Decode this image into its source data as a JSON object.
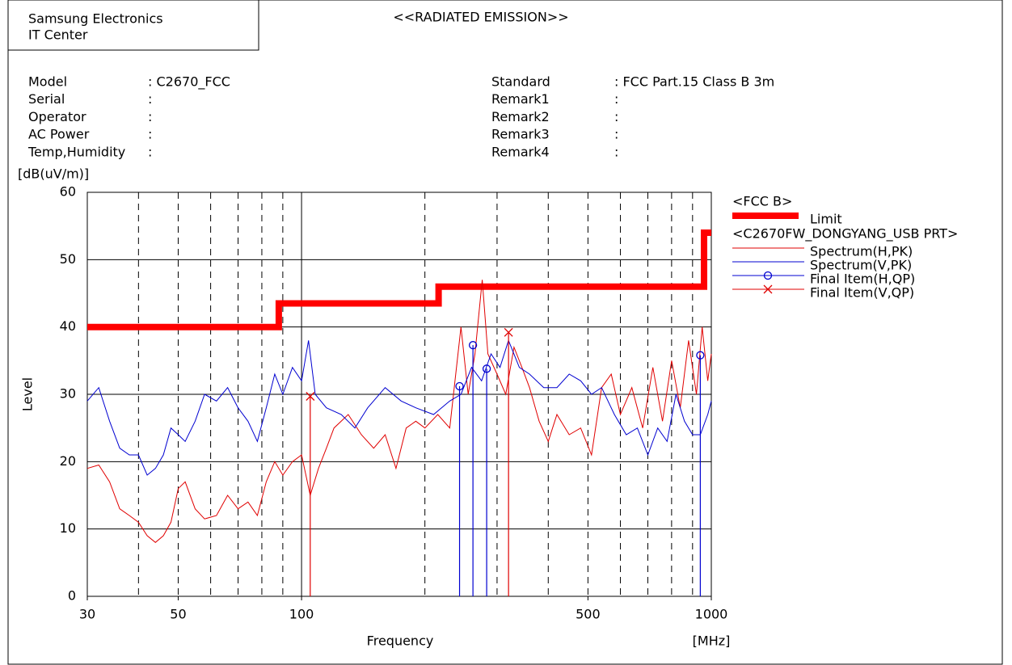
{
  "header": {
    "company": [
      "Samsung Electronics",
      "IT Center"
    ],
    "title": "<<RADIATED EMISSION>>",
    "fields_left": [
      {
        "label": "Model",
        "value": ": C2670_FCC"
      },
      {
        "label": "Serial",
        "value": ":"
      },
      {
        "label": "Operator",
        "value": ":"
      },
      {
        "label": "AC Power",
        "value": ":"
      },
      {
        "label": "Temp,Humidity",
        "value": ":"
      }
    ],
    "fields_right": [
      {
        "label": "Standard",
        "value": ": FCC Part.15 Class B 3m"
      },
      {
        "label": "Remark1",
        "value": ":"
      },
      {
        "label": "Remark2",
        "value": ":"
      },
      {
        "label": "Remark3",
        "value": ":"
      },
      {
        "label": "Remark4",
        "value": ":"
      }
    ]
  },
  "chart_data": {
    "type": "line",
    "x_label": "Frequency",
    "x_unit": "[MHz]",
    "y_label": "Level",
    "y_unit": "[dB(uV/m)]",
    "xscale": "log",
    "xlim": [
      30,
      1000
    ],
    "ylim": [
      0,
      60
    ],
    "xticks": [
      30,
      50,
      100,
      500,
      1000
    ],
    "yticks": [
      0,
      10,
      20,
      30,
      40,
      50,
      60
    ],
    "xgrid_dashed": [
      40,
      50,
      60,
      70,
      80,
      90,
      200,
      300,
      400,
      500,
      600,
      700,
      800,
      900
    ],
    "xgrid_solid": [
      100
    ],
    "legend_groups": [
      "<FCC B>",
      "<C2670FW_DONGYANG_USB PRT>"
    ],
    "series": [
      {
        "name": "Limit",
        "color": "#ff0000",
        "style": "thick",
        "group": 0,
        "x": [
          30,
          88,
          88,
          216,
          216,
          960,
          960,
          1000
        ],
        "values": [
          40,
          40,
          43.5,
          43.5,
          46,
          46,
          54,
          54
        ]
      },
      {
        "name": "Spectrum(H,PK)",
        "color": "#e00000",
        "style": "thin",
        "group": 1,
        "x": [
          30,
          32,
          34,
          36,
          38,
          40,
          42,
          44,
          46,
          48,
          50,
          52,
          55,
          58,
          62,
          66,
          70,
          74,
          78,
          82,
          86,
          90,
          95,
          100,
          105,
          110,
          115,
          120,
          130,
          140,
          150,
          160,
          170,
          180,
          190,
          200,
          215,
          230,
          245,
          255,
          265,
          276,
          285,
          300,
          315,
          330,
          345,
          360,
          380,
          400,
          420,
          450,
          480,
          510,
          540,
          570,
          600,
          640,
          680,
          720,
          760,
          800,
          840,
          880,
          920,
          950,
          980,
          1000
        ],
        "values": [
          19,
          19.5,
          17,
          13,
          12,
          11,
          9,
          8,
          9,
          11,
          16,
          17,
          13,
          11.5,
          12,
          15,
          13,
          14,
          12,
          17,
          20,
          18,
          20,
          21,
          15,
          19,
          22,
          25,
          27,
          24,
          22,
          24,
          19,
          25,
          26,
          25,
          27,
          25,
          40,
          30,
          36,
          47,
          36,
          33,
          30,
          37,
          34,
          31,
          26,
          23,
          27,
          24,
          25,
          21,
          31,
          33,
          27,
          31,
          25,
          34,
          26,
          35,
          28,
          38,
          30,
          40,
          32,
          36
        ]
      },
      {
        "name": "Spectrum(V,PK)",
        "color": "#0000d0",
        "style": "thin",
        "group": 1,
        "x": [
          30,
          32,
          34,
          36,
          38,
          40,
          42,
          44,
          46,
          48,
          50,
          52,
          55,
          58,
          62,
          66,
          70,
          74,
          78,
          82,
          86,
          90,
          95,
          100,
          104,
          108,
          115,
          125,
          135,
          145,
          160,
          175,
          190,
          210,
          230,
          245,
          260,
          275,
          290,
          305,
          320,
          340,
          360,
          390,
          420,
          450,
          480,
          510,
          540,
          580,
          620,
          660,
          700,
          740,
          780,
          820,
          860,
          900,
          940,
          980,
          1000
        ],
        "values": [
          29,
          31,
          26,
          22,
          21,
          21,
          18,
          19,
          21,
          25,
          24,
          23,
          26,
          30,
          29,
          31,
          28,
          26,
          23,
          28,
          33,
          30,
          34,
          32,
          38,
          30,
          28,
          27,
          25,
          28,
          31,
          29,
          28,
          27,
          29,
          30,
          34,
          32,
          36,
          34,
          38,
          34,
          33,
          31,
          31,
          33,
          32,
          30,
          31,
          27,
          24,
          25,
          21,
          25,
          23,
          30,
          26,
          24,
          24,
          27,
          29
        ]
      },
      {
        "name": "Final Item(H,QP)",
        "color": "#0000d0",
        "style": "marker",
        "marker": "o",
        "group": 1,
        "x": [
          243,
          262,
          283,
          940
        ],
        "values": [
          31.2,
          37.3,
          33.8,
          35.8
        ]
      },
      {
        "name": "Final Item(V,QP)",
        "color": "#e00000",
        "style": "marker",
        "marker": "x",
        "group": 1,
        "x": [
          105,
          320
        ],
        "values": [
          29.7,
          39.2
        ]
      }
    ]
  }
}
